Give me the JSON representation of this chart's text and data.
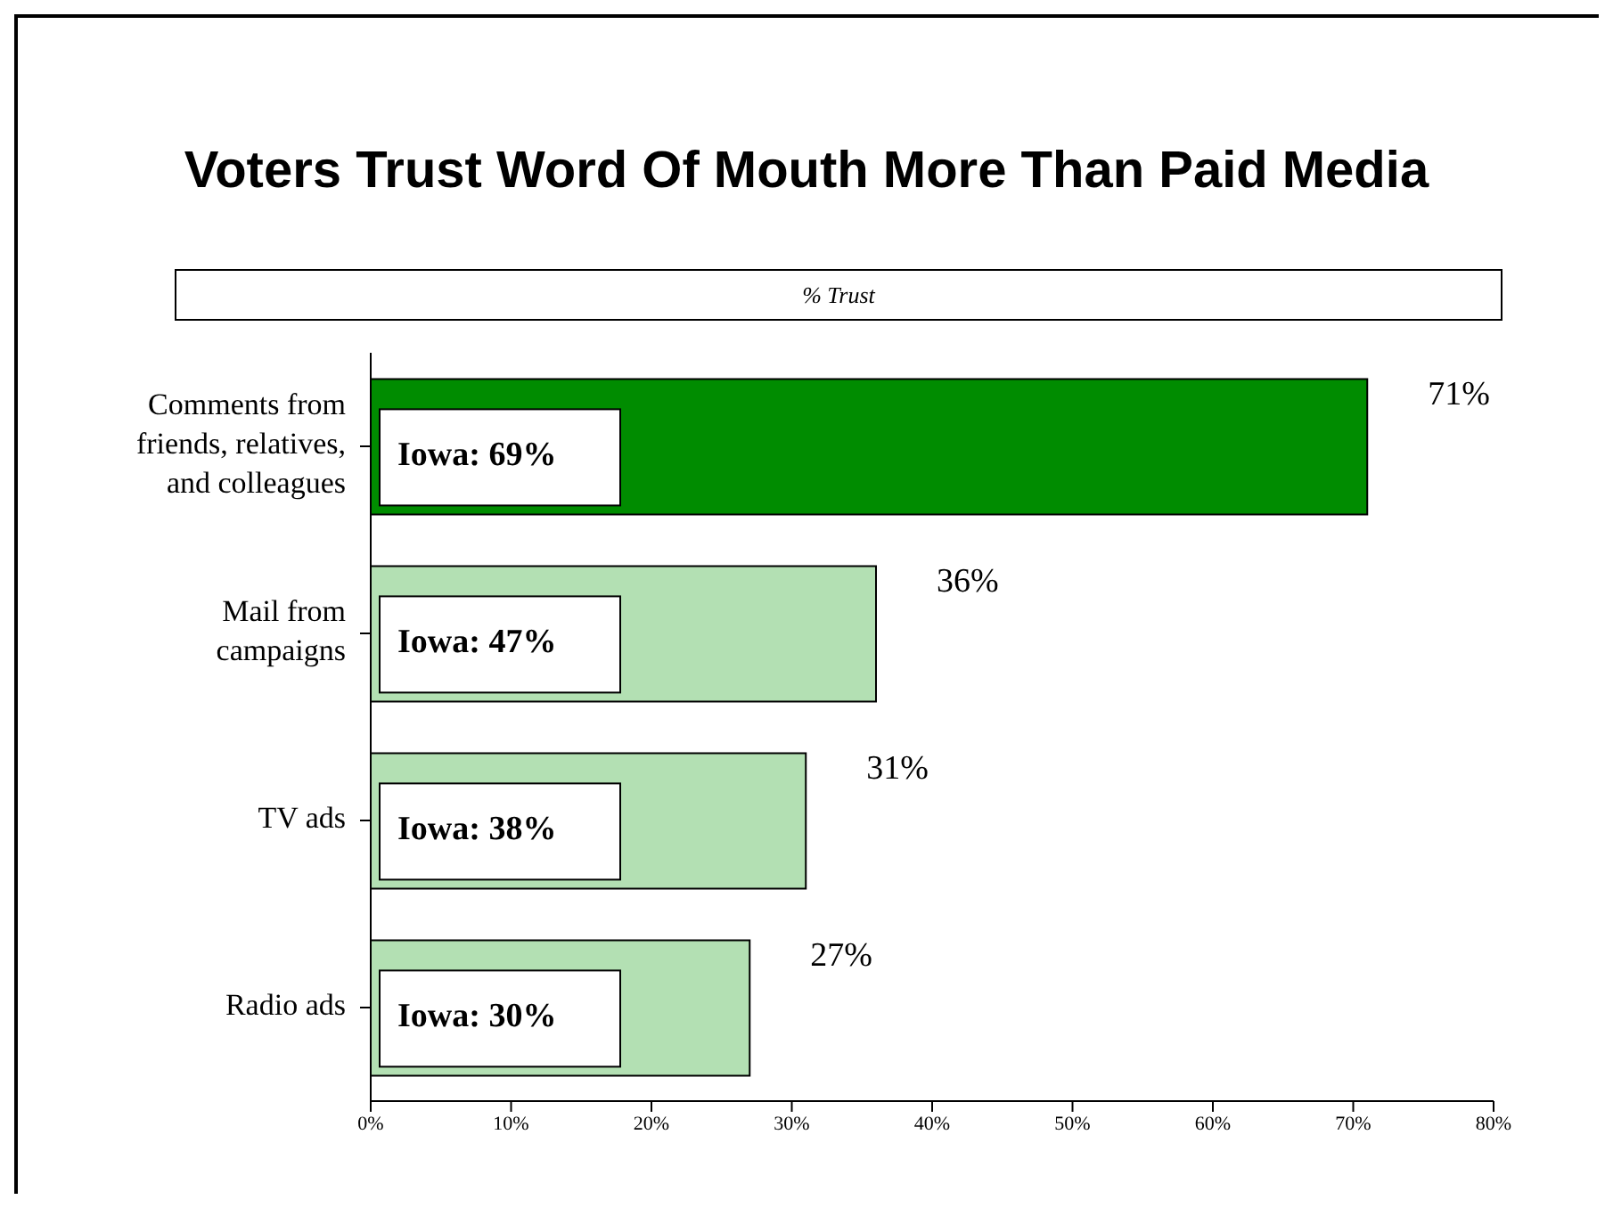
{
  "chart_data": {
    "type": "bar",
    "orientation": "horizontal",
    "title": "Voters Trust Word Of Mouth More Than Paid Media",
    "subtitle": "% Trust",
    "categories": [
      "Comments from friends, relatives, and colleagues",
      "Mail from campaigns",
      "TV ads",
      "Radio ads"
    ],
    "values": [
      71,
      36,
      31,
      27
    ],
    "colors": [
      "#008c00",
      "#b3e0b3",
      "#b3e0b3",
      "#b3e0b3"
    ],
    "value_labels": [
      "71%",
      "36%",
      "31%",
      "27%"
    ],
    "annotations": [
      "Iowa: 69%",
      "Iowa: 47%",
      "Iowa: 38%",
      "Iowa: 30%"
    ],
    "xlim": [
      0,
      80
    ],
    "xticks": [
      {
        "value": 0,
        "label": "0%"
      },
      {
        "value": 10,
        "label": "10%"
      },
      {
        "value": 20,
        "label": "20%"
      },
      {
        "value": 30,
        "label": "30%"
      },
      {
        "value": 40,
        "label": "40%"
      },
      {
        "value": 50,
        "label": "50%"
      },
      {
        "value": 60,
        "label": "60%"
      },
      {
        "value": 70,
        "label": "70%"
      },
      {
        "value": 80,
        "label": "80%"
      }
    ],
    "grid": false,
    "legend": false
  }
}
